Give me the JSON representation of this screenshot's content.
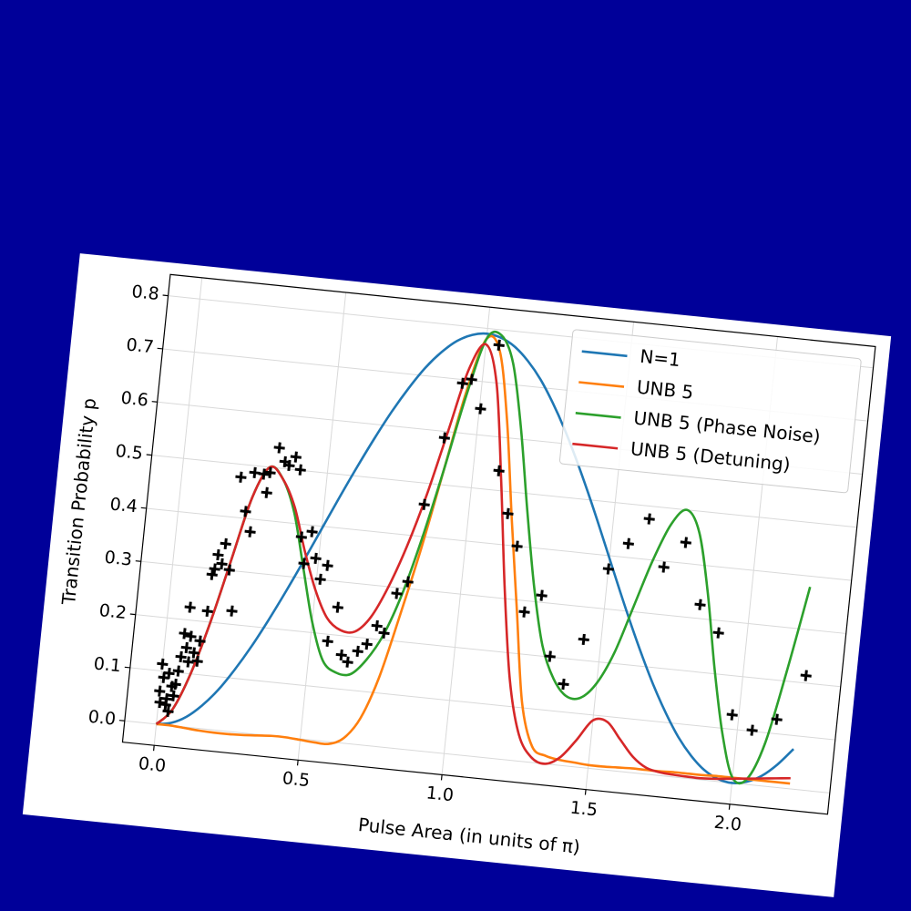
{
  "chart_data": {
    "type": "line",
    "xlabel": "Pulse Area (in units of π)",
    "ylabel": "Transition Probability p",
    "x": [
      0,
      0.05,
      0.1,
      0.15,
      0.2,
      0.25,
      0.3,
      0.35,
      0.4,
      0.45,
      0.5,
      0.55,
      0.6,
      0.65,
      0.7,
      0.75,
      0.8,
      0.85,
      0.9,
      0.95,
      1.0,
      1.05,
      1.1,
      1.15,
      1.2,
      1.25,
      1.3,
      1.35,
      1.4,
      1.45,
      1.5,
      1.55,
      1.6,
      1.65,
      1.7,
      1.75,
      1.8,
      1.85,
      1.9,
      1.95,
      2.0,
      2.05,
      2.1,
      2.15,
      2.2
    ],
    "series": [
      {
        "name": "N=1",
        "color": "#1f77b4",
        "values": [
          0,
          0.005,
          0.019,
          0.043,
          0.075,
          0.116,
          0.163,
          0.216,
          0.273,
          0.333,
          0.395,
          0.457,
          0.517,
          0.574,
          0.627,
          0.674,
          0.715,
          0.747,
          0.771,
          0.785,
          0.79,
          0.785,
          0.771,
          0.747,
          0.715,
          0.674,
          0.627,
          0.574,
          0.517,
          0.457,
          0.395,
          0.333,
          0.273,
          0.216,
          0.163,
          0.116,
          0.075,
          0.043,
          0.019,
          0.005,
          0,
          0.005,
          0.019,
          0.043,
          0.075
        ]
      },
      {
        "name": "UNB 5",
        "color": "#ff7f0e",
        "values": [
          0,
          0,
          -0.002,
          -0.004,
          -0.005,
          -0.005,
          -0.004,
          -0.002,
          0,
          0,
          -0.002,
          -0.004,
          -0.004,
          0.01,
          0.05,
          0.13,
          0.25,
          0.38,
          0.53,
          0.68,
          0.78,
          0.76,
          0.63,
          0.45,
          0.28,
          0.11,
          0.03,
          0.015,
          0.01,
          0.008,
          0.006,
          0.006,
          0.007,
          0.008,
          0.008,
          0.008,
          0.009,
          0.009,
          0.009,
          0.01,
          0.01,
          0.01,
          0.01,
          0.01,
          0.01
        ]
      },
      {
        "name": "UNB 5 (Phase Noise)",
        "color": "#2ca02c",
        "values": [
          0,
          0.03,
          0.1,
          0.2,
          0.32,
          0.44,
          0.5,
          0.48,
          0.42,
          0.32,
          0.22,
          0.15,
          0.13,
          0.13,
          0.16,
          0.21,
          0.29,
          0.4,
          0.53,
          0.67,
          0.78,
          0.79,
          0.74,
          0.62,
          0.47,
          0.33,
          0.22,
          0.16,
          0.13,
          0.13,
          0.16,
          0.22,
          0.31,
          0.4,
          0.47,
          0.5,
          0.46,
          0.35,
          0.21,
          0.09,
          0.01,
          0.01,
          0.08,
          0.22,
          0.38
        ]
      },
      {
        "name": "UNB 5 (Detuning)",
        "color": "#d62728",
        "values": [
          0,
          0.03,
          0.1,
          0.2,
          0.32,
          0.44,
          0.5,
          0.48,
          0.43,
          0.35,
          0.28,
          0.23,
          0.21,
          0.21,
          0.24,
          0.3,
          0.38,
          0.48,
          0.6,
          0.72,
          0.77,
          0.7,
          0.52,
          0.32,
          0.15,
          0.05,
          0.01,
          0,
          0.015,
          0.05,
          0.09,
          0.09,
          0.06,
          0.03,
          0.012,
          0.006,
          0.004,
          0.003,
          0.003,
          0.005,
          0.008,
          0.011,
          0.014,
          0.017,
          0.02
        ]
      }
    ],
    "scatter": {
      "color": "#000000",
      "marker": "+",
      "x": [
        0.0,
        0.0,
        0.005,
        0.009,
        0.026,
        0.025,
        0.026,
        0.04,
        0.049,
        0.036,
        0.052,
        0.057,
        0.061,
        0.065,
        0.077,
        0.088,
        0.075,
        0.088,
        0.104,
        0.119,
        0.121,
        0.136,
        0.139,
        0.146,
        0.153,
        0.169,
        0.175,
        0.197,
        0.22,
        0.204,
        0.232,
        0.255,
        0.25,
        0.282,
        0.298,
        0.303,
        0.326,
        0.35,
        0.366,
        0.386,
        0.406,
        0.433,
        0.451,
        0.468,
        0.49,
        0.513,
        0.533,
        0.56,
        0.583,
        0.612,
        0.636,
        0.667,
        0.696,
        0.724,
        0.751,
        0.781,
        0.815,
        0.844,
        0.89,
        0.933,
        0.963,
        1.004,
        1.045,
        1.089,
        1.135,
        1.178,
        1.226,
        1.28,
        1.33,
        1.386,
        1.44,
        1.5,
        1.56,
        1.623,
        1.69,
        1.757,
        1.828,
        1.901,
        1.977,
        2.051,
        2.132,
        2.217
      ],
      "values": [
        0.113,
        0.062,
        0.041,
        0.088,
        0.049,
        0.038,
        0.097,
        0.073,
        0.056,
        0.026,
        0.078,
        0.103,
        0.13,
        0.174,
        0.148,
        0.122,
        0.224,
        0.17,
        0.14,
        0.125,
        0.163,
        0.22,
        0.289,
        0.3,
        0.327,
        0.311,
        0.349,
        0.301,
        0.225,
        0.476,
        0.413,
        0.376,
        0.487,
        0.486,
        0.452,
        0.49,
        0.538,
        0.513,
        0.507,
        0.524,
        0.501,
        0.376,
        0.327,
        0.388,
        0.339,
        0.301,
        0.328,
        0.187,
        0.252,
        0.164,
        0.152,
        0.174,
        0.189,
        0.225,
        0.213,
        0.289,
        0.313,
        0.46,
        0.588,
        0.693,
        0.702,
        0.649,
        0.771,
        0.537,
        0.459,
        0.4,
        0.279,
        0.313,
        0.201,
        0.152,
        0.239,
        0.375,
        0.426,
        0.476,
        0.389,
        0.439,
        0.326,
        0.277,
        0.127,
        0.102,
        0.127,
        0.214
      ]
    },
    "xlim": [
      -0.11,
      2.34
    ],
    "ylim": [
      -0.04,
      0.84
    ],
    "xticks": [
      {
        "value": 0,
        "label": "0.0"
      },
      0.5,
      {
        "value": 1,
        "label": "1.0"
      },
      1.5,
      {
        "value": 2,
        "label": "2.0"
      }
    ],
    "yticks": [
      {
        "value": 0,
        "label": "0.0"
      },
      0.1,
      0.2,
      0.3,
      0.4,
      0.5,
      0.6,
      0.7,
      0.8
    ],
    "grid": true,
    "legend": "upper right"
  }
}
